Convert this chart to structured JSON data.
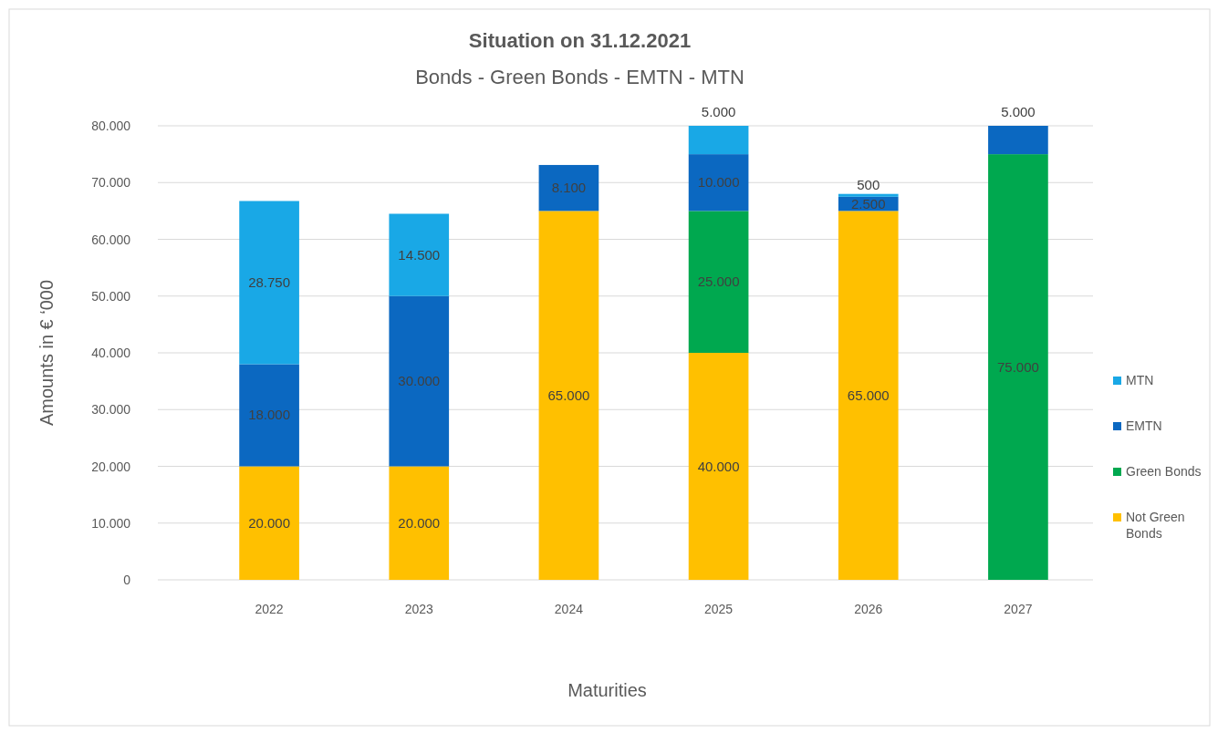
{
  "chart_data": {
    "type": "bar",
    "stacked": true,
    "title": "Situation on 31.12.2021",
    "subtitle": "Bonds - Green Bonds - EMTN - MTN",
    "xlabel": "Maturities",
    "ylabel": "Amounts in € ‘000",
    "categories": [
      "2022",
      "2023",
      "2024",
      "2025",
      "2026",
      "2027"
    ],
    "series": [
      {
        "name": "Not Green Bonds",
        "color": "#ffc000",
        "values": [
          20000,
          20000,
          65000,
          40000,
          65000,
          0
        ],
        "value_labels": [
          "20.000",
          "20.000",
          "65.000",
          "40.000",
          "65.000",
          null
        ]
      },
      {
        "name": "Green Bonds",
        "color": "#00a84f",
        "values": [
          0,
          0,
          0,
          25000,
          0,
          75000
        ],
        "value_labels": [
          null,
          null,
          null,
          "25.000",
          null,
          "75.000"
        ]
      },
      {
        "name": "EMTN",
        "color": "#0b68c1",
        "values": [
          18000,
          30000,
          8100,
          10000,
          2500,
          5000
        ],
        "value_labels": [
          "18.000",
          "30.000",
          "8.100",
          "10.000",
          "2.500",
          "5.000"
        ]
      },
      {
        "name": "MTN",
        "color": "#19a8e6",
        "values": [
          28750,
          14500,
          0,
          5000,
          500,
          0
        ],
        "value_labels": [
          "28.750",
          "14.500",
          null,
          "5.000",
          "500",
          null
        ]
      }
    ],
    "ylim": [
      0,
      80000
    ],
    "yticks": [
      {
        "value": 0,
        "label": "0"
      },
      {
        "value": 10000,
        "label": "10.000"
      },
      {
        "value": 20000,
        "label": "20.000"
      },
      {
        "value": 30000,
        "label": "30.000"
      },
      {
        "value": 40000,
        "label": "40.000"
      },
      {
        "value": 50000,
        "label": "50.000"
      },
      {
        "value": 60000,
        "label": "60.000"
      },
      {
        "value": 70000,
        "label": "70.000"
      },
      {
        "value": 80000,
        "label": "80.000"
      }
    ],
    "grid": "y",
    "legend": "right"
  }
}
